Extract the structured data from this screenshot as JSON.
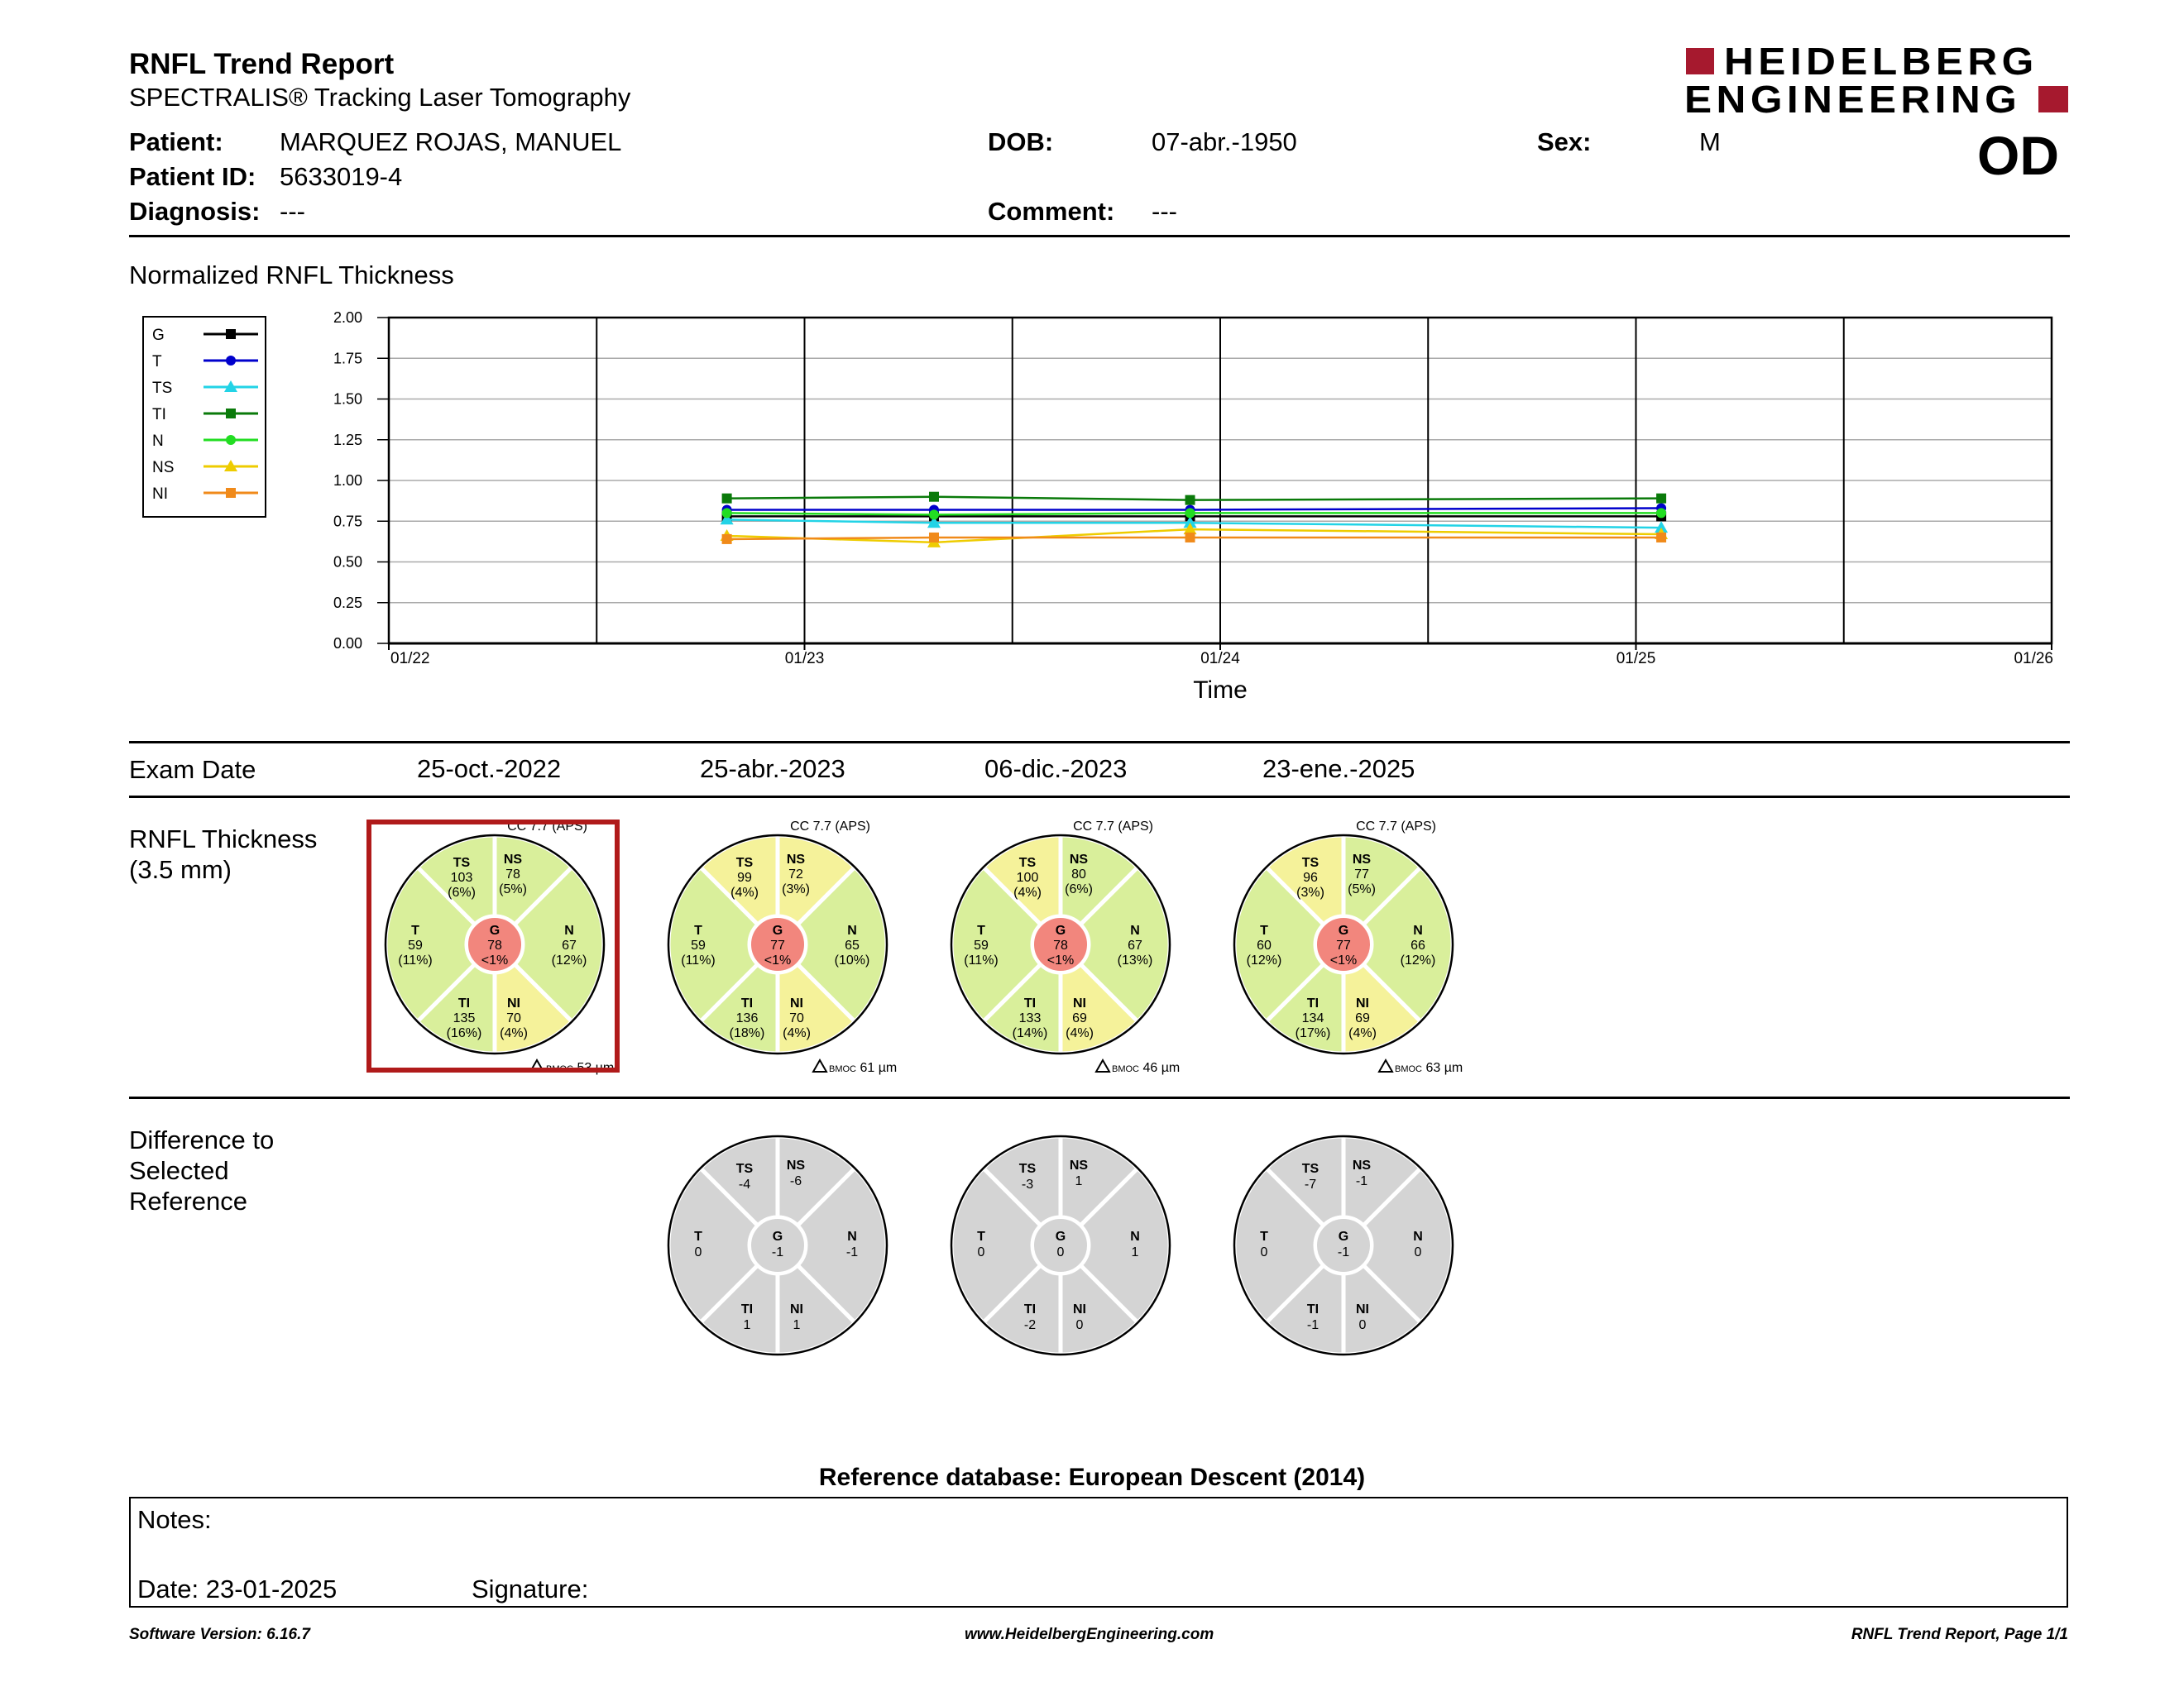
{
  "header": {
    "title": "RNFL Trend Report",
    "subtitle": "SPECTRALIS® Tracking Laser Tomography",
    "logo_line1": "HEIDELBERG",
    "logo_line2": "ENGINEERING",
    "brand_color": "#a6192e",
    "eye": "OD"
  },
  "patient": {
    "name_label": "Patient:",
    "name": "MARQUEZ ROJAS, MANUEL",
    "id_label": "Patient ID:",
    "id": "5633019-4",
    "diagnosis_label": "Diagnosis:",
    "diagnosis": "---",
    "dob_label": "DOB:",
    "dob": "07-abr.-1950",
    "comment_label": "Comment:",
    "comment": "---",
    "sex_label": "Sex:",
    "sex": "M"
  },
  "chart_title": "Normalized RNFL Thickness",
  "chart_data": {
    "type": "line",
    "xlabel": "Time",
    "x_ticks": [
      "01/22",
      "01/23",
      "01/24",
      "01/25",
      "01/26"
    ],
    "ylim": [
      0,
      2
    ],
    "y_ticks": [
      "0.00",
      "0.25",
      "0.50",
      "0.75",
      "1.00",
      "1.25",
      "1.50",
      "1.75",
      "2.00"
    ],
    "legend_position": "left",
    "x": [
      "2022-10-25",
      "2023-04-25",
      "2023-12-06",
      "2025-01-23"
    ],
    "series": [
      {
        "name": "G",
        "color": "#000000",
        "marker": "square",
        "values": [
          0.78,
          0.78,
          0.78,
          0.78
        ]
      },
      {
        "name": "T",
        "color": "#0000cc",
        "marker": "circle",
        "values": [
          0.82,
          0.82,
          0.82,
          0.83
        ]
      },
      {
        "name": "TS",
        "color": "#22d3e6",
        "marker": "triangle",
        "values": [
          0.76,
          0.74,
          0.74,
          0.71
        ]
      },
      {
        "name": "TI",
        "color": "#0a7a0a",
        "marker": "square",
        "values": [
          0.89,
          0.9,
          0.88,
          0.89
        ]
      },
      {
        "name": "N",
        "color": "#22dd22",
        "marker": "circle",
        "values": [
          0.8,
          0.79,
          0.8,
          0.8
        ]
      },
      {
        "name": "NS",
        "color": "#eecc00",
        "marker": "triangle",
        "values": [
          0.66,
          0.62,
          0.7,
          0.67
        ]
      },
      {
        "name": "NI",
        "color": "#f08a1a",
        "marker": "square",
        "values": [
          0.64,
          0.65,
          0.65,
          0.65
        ]
      }
    ]
  },
  "exam_date_label": "Exam Date",
  "rnfl_label_line1": "RNFL Thickness",
  "rnfl_label_line2": "(3.5 mm)",
  "diff_label_line1": "Difference to",
  "diff_label_line2": "Selected",
  "diff_label_line3": "Reference",
  "exams": [
    {
      "date": "25-oct.-2022",
      "cc": "CC 7.7 (APS)",
      "bmoc": "BMOC 53 µm",
      "selected": true,
      "TS": {
        "v": "103",
        "p": "(6%)",
        "c": "#d9ef9b"
      },
      "NS": {
        "v": "78",
        "p": "(5%)",
        "c": "#d9ef9b"
      },
      "T": {
        "v": "59",
        "p": "(11%)",
        "c": "#d9ef9b"
      },
      "G": {
        "v": "78",
        "p": "<1%",
        "c": "#f2867d"
      },
      "N": {
        "v": "67",
        "p": "(12%)",
        "c": "#d9ef9b"
      },
      "TI": {
        "v": "135",
        "p": "(16%)",
        "c": "#d9ef9b"
      },
      "NI": {
        "v": "70",
        "p": "(4%)",
        "c": "#f5f29a"
      },
      "diff": null
    },
    {
      "date": "25-abr.-2023",
      "cc": "CC 7.7 (APS)",
      "bmoc": "BMOC 61 µm",
      "selected": false,
      "TS": {
        "v": "99",
        "p": "(4%)",
        "c": "#f5f29a"
      },
      "NS": {
        "v": "72",
        "p": "(3%)",
        "c": "#f5f29a"
      },
      "T": {
        "v": "59",
        "p": "(11%)",
        "c": "#d9ef9b"
      },
      "G": {
        "v": "77",
        "p": "<1%",
        "c": "#f2867d"
      },
      "N": {
        "v": "65",
        "p": "(10%)",
        "c": "#d9ef9b"
      },
      "TI": {
        "v": "136",
        "p": "(18%)",
        "c": "#d9ef9b"
      },
      "NI": {
        "v": "70",
        "p": "(4%)",
        "c": "#f5f29a"
      },
      "diff": {
        "TS": "-4",
        "NS": "-6",
        "T": "0",
        "G": "-1",
        "N": "-1",
        "TI": "1",
        "NI": "1"
      }
    },
    {
      "date": "06-dic.-2023",
      "cc": "CC 7.7 (APS)",
      "bmoc": "BMOC 46 µm",
      "selected": false,
      "TS": {
        "v": "100",
        "p": "(4%)",
        "c": "#f5f29a"
      },
      "NS": {
        "v": "80",
        "p": "(6%)",
        "c": "#d9ef9b"
      },
      "T": {
        "v": "59",
        "p": "(11%)",
        "c": "#d9ef9b"
      },
      "G": {
        "v": "78",
        "p": "<1%",
        "c": "#f2867d"
      },
      "N": {
        "v": "67",
        "p": "(13%)",
        "c": "#d9ef9b"
      },
      "TI": {
        "v": "133",
        "p": "(14%)",
        "c": "#d9ef9b"
      },
      "NI": {
        "v": "69",
        "p": "(4%)",
        "c": "#f5f29a"
      },
      "diff": {
        "TS": "-3",
        "NS": "1",
        "T": "0",
        "G": "0",
        "N": "1",
        "TI": "-2",
        "NI": "0"
      }
    },
    {
      "date": "23-ene.-2025",
      "cc": "CC 7.7 (APS)",
      "bmoc": "BMOC 63 µm",
      "selected": false,
      "TS": {
        "v": "96",
        "p": "(3%)",
        "c": "#f5f29a"
      },
      "NS": {
        "v": "77",
        "p": "(5%)",
        "c": "#d9ef9b"
      },
      "T": {
        "v": "60",
        "p": "(12%)",
        "c": "#d9ef9b"
      },
      "G": {
        "v": "77",
        "p": "<1%",
        "c": "#f2867d"
      },
      "N": {
        "v": "66",
        "p": "(12%)",
        "c": "#d9ef9b"
      },
      "TI": {
        "v": "134",
        "p": "(17%)",
        "c": "#d9ef9b"
      },
      "NI": {
        "v": "69",
        "p": "(4%)",
        "c": "#f5f29a"
      },
      "diff": {
        "TS": "-7",
        "NS": "-1",
        "T": "0",
        "G": "-1",
        "N": "0",
        "TI": "-1",
        "NI": "0"
      }
    }
  ],
  "reference_db": "Reference database: European Descent (2014)",
  "notes": {
    "label": "Notes:",
    "date": "Date: 23-01-2025",
    "signature": "Signature:"
  },
  "footer": {
    "software": "Software Version: 6.16.7",
    "website": "www.HeidelbergEngineering.com",
    "page": "RNFL Trend Report, Page 1/1"
  }
}
